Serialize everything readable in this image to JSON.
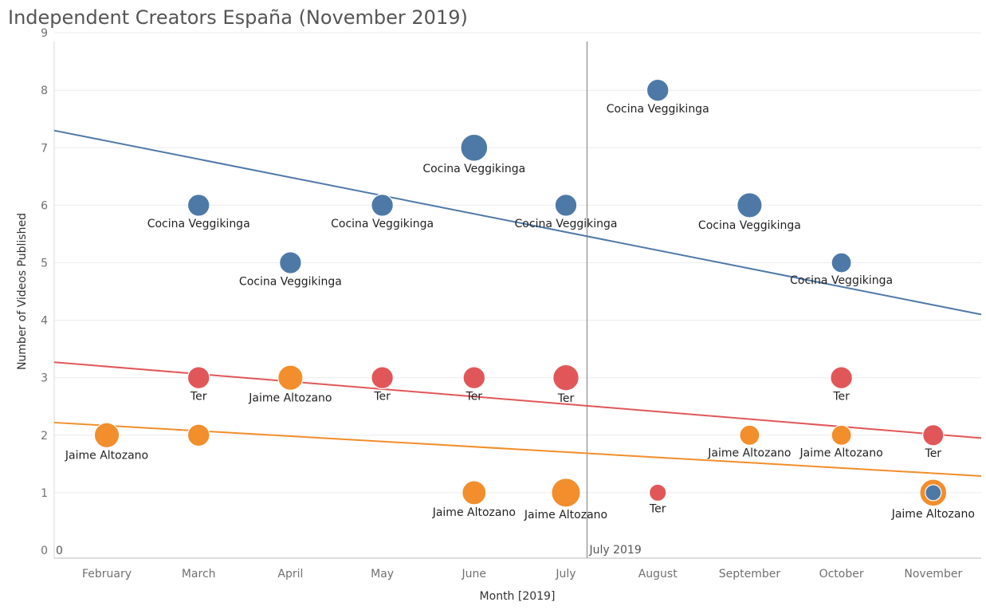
{
  "title": "Independent Creators España (November 2019)",
  "chart_data": {
    "type": "scatter",
    "title": "Independent Creators España (November 2019)",
    "xlabel": "Month [2019]",
    "ylabel": "Number of Videos Published",
    "categories": [
      "February",
      "March",
      "April",
      "May",
      "June",
      "July",
      "August",
      "September",
      "October",
      "November"
    ],
    "ylim": [
      0,
      9
    ],
    "yticks": [
      0,
      1,
      2,
      3,
      4,
      5,
      6,
      7,
      8,
      9
    ],
    "grid": true,
    "reference_line": {
      "x": 5.23,
      "label": "July 2019"
    },
    "zero_label": "0",
    "colors": {
      "Cocina Veggikinga": "#4e79a7",
      "Ter": "#e15759",
      "Jaime Altozano": "#f28e2b"
    },
    "series": [
      {
        "name": "Cocina Veggikinga",
        "color": "#4e79a7",
        "points": [
          {
            "x": 1,
            "y": 6,
            "size": 1.1,
            "label": "Cocina Veggikinga"
          },
          {
            "x": 2,
            "y": 5,
            "size": 1.1,
            "label": "Cocina Veggikinga"
          },
          {
            "x": 3,
            "y": 6,
            "size": 1.1,
            "label": "Cocina Veggikinga"
          },
          {
            "x": 4,
            "y": 7,
            "size": 1.35,
            "label": "Cocina Veggikinga"
          },
          {
            "x": 5,
            "y": 6,
            "size": 1.1,
            "label": "Cocina Veggikinga"
          },
          {
            "x": 6,
            "y": 8,
            "size": 1.1,
            "label": "Cocina Veggikinga"
          },
          {
            "x": 7,
            "y": 6,
            "size": 1.25,
            "label": "Cocina Veggikinga"
          },
          {
            "x": 8,
            "y": 5,
            "size": 1.0,
            "label": "Cocina Veggikinga"
          },
          {
            "x": 9,
            "y": 1,
            "size": 0.8,
            "label": ""
          }
        ],
        "trend": [
          7.3,
          4.1
        ]
      },
      {
        "name": "Ter",
        "color": "#e15759",
        "points": [
          {
            "x": 1,
            "y": 3,
            "size": 1.1,
            "label": "Ter"
          },
          {
            "x": 3,
            "y": 3,
            "size": 1.1,
            "label": "Ter"
          },
          {
            "x": 4,
            "y": 3,
            "size": 1.1,
            "label": "Ter"
          },
          {
            "x": 5,
            "y": 3,
            "size": 1.3,
            "label": "Ter"
          },
          {
            "x": 6,
            "y": 1,
            "size": 0.85,
            "label": "Ter"
          },
          {
            "x": 8,
            "y": 3,
            "size": 1.1,
            "label": "Ter"
          },
          {
            "x": 9,
            "y": 2,
            "size": 1.05,
            "label": "Ter"
          }
        ],
        "trend": [
          3.27,
          1.95
        ]
      },
      {
        "name": "Jaime Altozano",
        "color": "#f28e2b",
        "points": [
          {
            "x": 0,
            "y": 2,
            "size": 1.25,
            "label": "Jaime Altozano"
          },
          {
            "x": 1,
            "y": 2,
            "size": 1.1,
            "label": ""
          },
          {
            "x": 2,
            "y": 3,
            "size": 1.25,
            "label": "Jaime Altozano"
          },
          {
            "x": 4,
            "y": 1,
            "size": 1.2,
            "label": "Jaime Altozano"
          },
          {
            "x": 5,
            "y": 1,
            "size": 1.45,
            "label": "Jaime Altozano"
          },
          {
            "x": 7,
            "y": 2,
            "size": 1.0,
            "label": "Jaime Altozano"
          },
          {
            "x": 8,
            "y": 2,
            "size": 1.0,
            "label": "Jaime Altozano"
          },
          {
            "x": 9,
            "y": 1,
            "size": 1.35,
            "label": "Jaime Altozano"
          }
        ],
        "trend": [
          2.22,
          1.29
        ]
      }
    ]
  }
}
